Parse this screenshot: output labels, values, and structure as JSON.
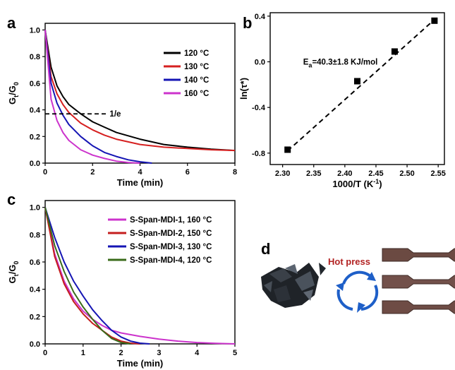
{
  "chart_data": [
    {
      "id": "a",
      "panel_label": "a",
      "type": "line",
      "xlabel": "Time (min)",
      "ylabel": "Gt/G0",
      "xlim": [
        0,
        8
      ],
      "ylim": [
        0,
        1.05
      ],
      "xticks": [
        0,
        2,
        4,
        6,
        8
      ],
      "yticks": [
        0.0,
        0.2,
        0.4,
        0.6,
        0.8,
        1.0
      ],
      "xtick_labels": [
        "0",
        "2",
        "4",
        "6",
        "8"
      ],
      "ytick_labels": [
        "0.0",
        "0.2",
        "0.4",
        "0.6",
        "0.8",
        "1.0"
      ],
      "legend_position": "top-right",
      "reference_line": {
        "label": "1/e",
        "y": 0.37,
        "x_end": 2.6
      },
      "series": [
        {
          "name": "120 °C",
          "color": "#000000",
          "x": [
            0,
            0.25,
            0.5,
            0.75,
            1,
            1.5,
            2,
            2.5,
            3,
            4,
            5,
            6,
            7,
            8
          ],
          "values": [
            1.0,
            0.72,
            0.58,
            0.5,
            0.44,
            0.37,
            0.31,
            0.27,
            0.23,
            0.18,
            0.14,
            0.12,
            0.105,
            0.095
          ]
        },
        {
          "name": "130 °C",
          "color": "#d62020",
          "x": [
            0,
            0.25,
            0.5,
            0.75,
            1,
            1.5,
            2,
            2.5,
            3,
            4,
            5,
            6,
            7,
            8
          ],
          "values": [
            1.0,
            0.65,
            0.52,
            0.44,
            0.38,
            0.3,
            0.25,
            0.21,
            0.18,
            0.14,
            0.12,
            0.11,
            0.1,
            0.095
          ]
        },
        {
          "name": "140 °C",
          "color": "#1515b4",
          "x": [
            0,
            0.25,
            0.5,
            0.75,
            1,
            1.5,
            2,
            2.5,
            3,
            3.5,
            4,
            4.5
          ],
          "values": [
            1.0,
            0.6,
            0.45,
            0.36,
            0.29,
            0.2,
            0.13,
            0.08,
            0.05,
            0.025,
            0.01,
            0.0
          ]
        },
        {
          "name": "160 °C",
          "color": "#cc33cc",
          "x": [
            0,
            0.25,
            0.5,
            0.75,
            1,
            1.5,
            2,
            2.5,
            3,
            3.5,
            4
          ],
          "values": [
            1.0,
            0.48,
            0.32,
            0.23,
            0.17,
            0.1,
            0.06,
            0.035,
            0.015,
            0.005,
            0.0
          ]
        }
      ]
    },
    {
      "id": "b",
      "panel_label": "b",
      "type": "scatter",
      "xlabel": "1000/T (K-1)",
      "ylabel": "ln(τ*)",
      "xlim": [
        2.28,
        2.56
      ],
      "ylim": [
        -0.9,
        0.43
      ],
      "xticks": [
        2.3,
        2.35,
        2.4,
        2.45,
        2.5,
        2.55
      ],
      "yticks": [
        -0.8,
        -0.4,
        0.0,
        0.4
      ],
      "xtick_labels": [
        "2.30",
        "2.35",
        "2.40",
        "2.45",
        "2.50",
        "2.55"
      ],
      "ytick_labels": [
        "-0.8",
        "-0.4",
        "0.0",
        "0.4"
      ],
      "annotation": "Ea=40.3±1.8 KJ/mol",
      "points": {
        "x": [
          2.308,
          2.42,
          2.48,
          2.544
        ],
        "values": [
          -0.77,
          -0.17,
          0.09,
          0.36
        ]
      },
      "fit_line": {
        "x": [
          2.308,
          2.544
        ],
        "values": [
          -0.78,
          0.37
        ]
      }
    },
    {
      "id": "c",
      "panel_label": "c",
      "type": "line",
      "xlabel": "Time (min)",
      "ylabel": "Gt/G0",
      "xlim": [
        0,
        5
      ],
      "ylim": [
        0,
        1.05
      ],
      "xticks": [
        0,
        1,
        2,
        3,
        4,
        5
      ],
      "yticks": [
        0.0,
        0.2,
        0.4,
        0.6,
        0.8,
        1.0
      ],
      "xtick_labels": [
        "0",
        "1",
        "2",
        "3",
        "4",
        "5"
      ],
      "ytick_labels": [
        "0.0",
        "0.2",
        "0.4",
        "0.6",
        "0.8",
        "1.0"
      ],
      "legend_position": "top-right",
      "series": [
        {
          "name": "S-Span-MDI-1, 160 °C",
          "color": "#cc33cc",
          "x": [
            0,
            0.25,
            0.5,
            0.75,
            1,
            1.25,
            1.5,
            1.75,
            2,
            2.5,
            3,
            3.5,
            4,
            4.5,
            5
          ],
          "values": [
            1.0,
            0.66,
            0.46,
            0.33,
            0.24,
            0.18,
            0.135,
            0.1,
            0.08,
            0.055,
            0.035,
            0.02,
            0.01,
            0.004,
            0.0
          ]
        },
        {
          "name": "S-Span-MDI-2, 150 °C",
          "color": "#c41e1e",
          "x": [
            0,
            0.25,
            0.5,
            0.75,
            1,
            1.25,
            1.5,
            1.75,
            2,
            2.25,
            2.5
          ],
          "values": [
            1.0,
            0.64,
            0.44,
            0.31,
            0.22,
            0.15,
            0.1,
            0.05,
            0.02,
            0.005,
            0.0
          ]
        },
        {
          "name": "S-Span-MDI-3, 130 °C",
          "color": "#1515b4",
          "x": [
            0,
            0.25,
            0.5,
            0.75,
            1,
            1.25,
            1.5,
            1.75,
            2,
            2.25,
            2.5,
            2.75
          ],
          "values": [
            1.0,
            0.78,
            0.6,
            0.46,
            0.35,
            0.25,
            0.17,
            0.1,
            0.05,
            0.02,
            0.005,
            0.0
          ]
        },
        {
          "name": "S-Span-MDI-4, 120 °C",
          "color": "#3a6b1a",
          "x": [
            0,
            0.25,
            0.5,
            0.75,
            1,
            1.25,
            1.5,
            1.75,
            2,
            2.25
          ],
          "values": [
            1.0,
            0.72,
            0.53,
            0.38,
            0.27,
            0.18,
            0.1,
            0.04,
            0.01,
            0.0
          ]
        }
      ]
    }
  ],
  "panel_d": {
    "panel_label": "d",
    "caption": "Hot press"
  }
}
